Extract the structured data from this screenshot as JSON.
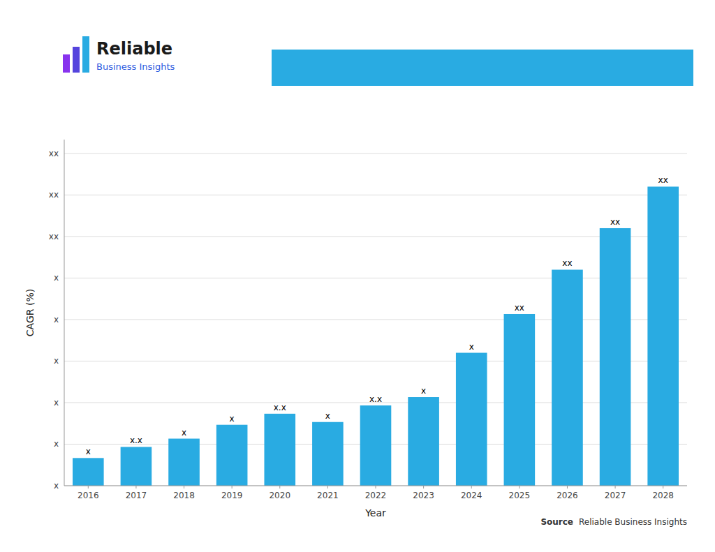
{
  "chart_data": {
    "type": "bar",
    "categories": [
      "2016",
      "2017",
      "2018",
      "2019",
      "2020",
      "2021",
      "2022",
      "2023",
      "2024",
      "2025",
      "2026",
      "2027",
      "2028"
    ],
    "values": [
      1.0,
      1.4,
      1.7,
      2.2,
      2.6,
      2.3,
      2.9,
      3.2,
      4.8,
      6.2,
      7.8,
      9.3,
      10.8
    ],
    "value_labels": [
      "x",
      "x.x",
      "x",
      "x",
      "x.x",
      "x",
      "x.x",
      "x",
      "x",
      "xx",
      "xx",
      "xx",
      "xx"
    ],
    "data_labels": true,
    "color": "#29ABE2",
    "x_label": "Year",
    "y_label": "CAGR (%)",
    "ylim": [
      0,
      12.5
    ],
    "yticks": [
      {
        "value": 0,
        "label": "x"
      },
      {
        "value": 1.5,
        "label": "x"
      },
      {
        "value": 3.0,
        "label": "x"
      },
      {
        "value": 4.5,
        "label": "x"
      },
      {
        "value": 6.0,
        "label": "x"
      },
      {
        "value": 7.5,
        "label": "x"
      },
      {
        "value": 9.0,
        "label": "xx"
      },
      {
        "value": 10.5,
        "label": "xx"
      },
      {
        "value": 12.0,
        "label": "xx"
      }
    ],
    "grid": true,
    "annotations": [
      "Reliable",
      "Business Insights",
      "Source",
      "Reliable Business Insights"
    ]
  }
}
